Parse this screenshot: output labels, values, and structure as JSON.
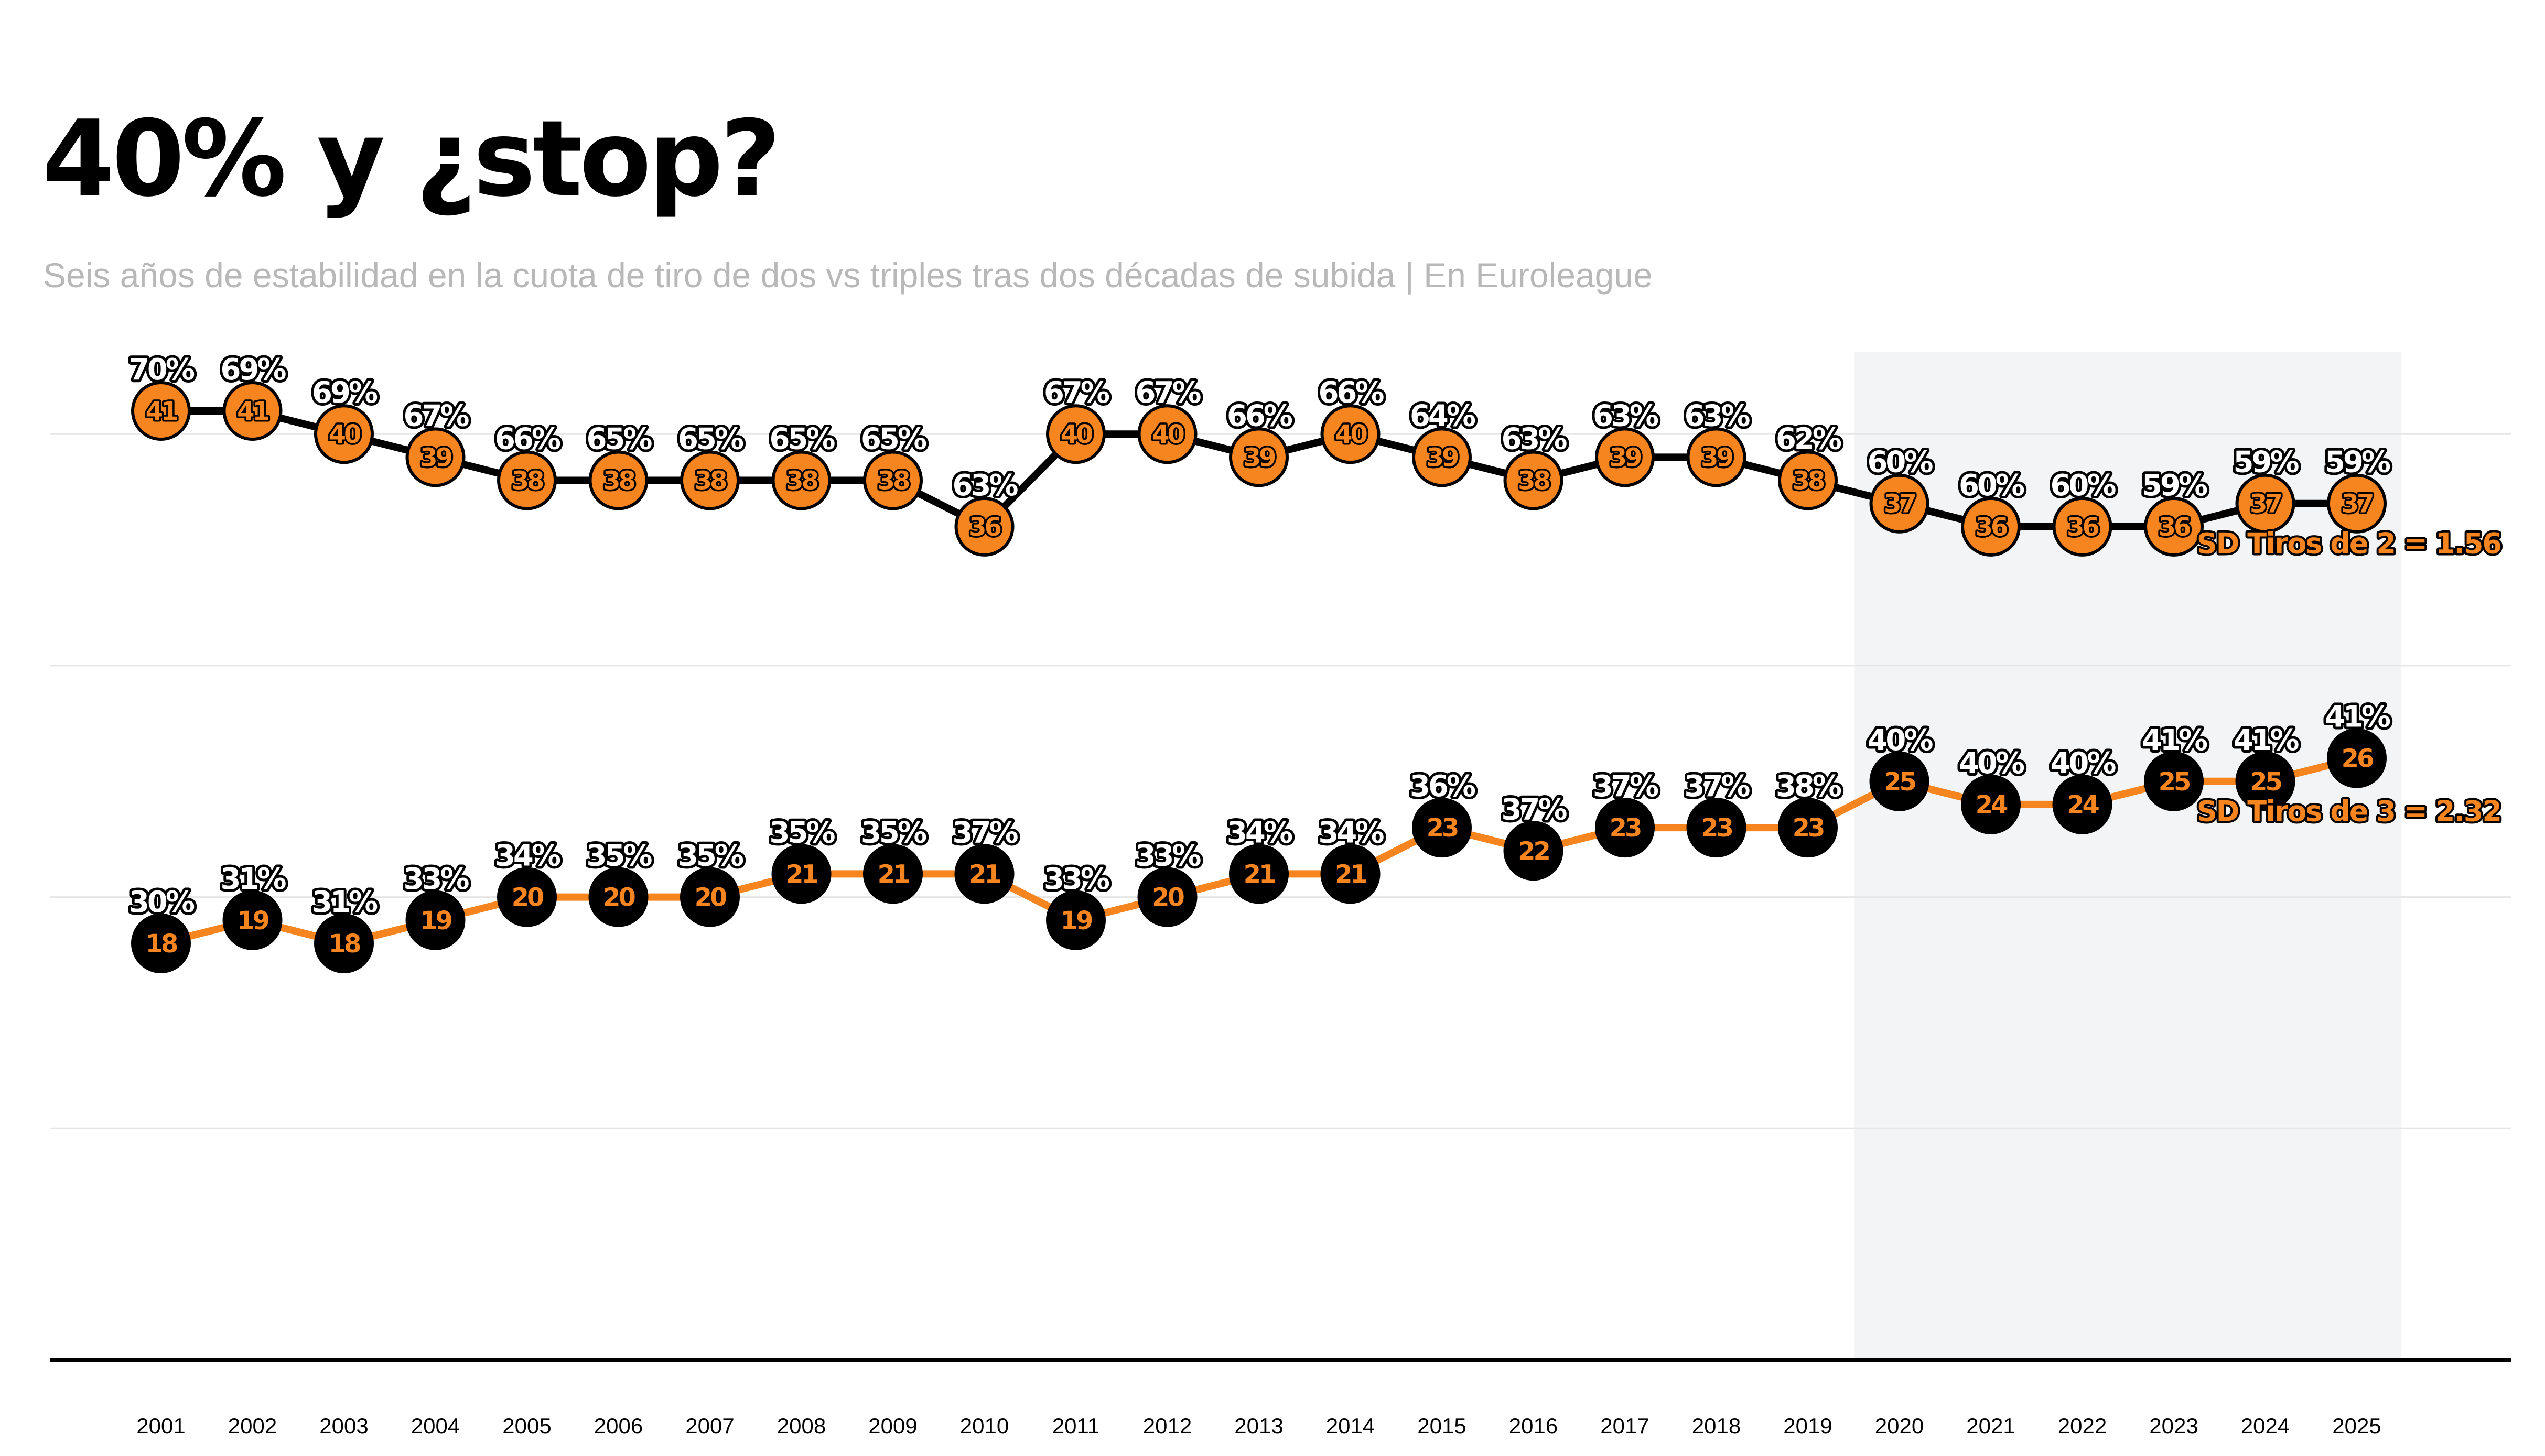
{
  "chart_data": {
    "type": "line",
    "title": "40% y ¿stop?",
    "subtitle": "Seis años de estabilidad en la cuota de tiro de dos vs triples tras dos décadas de subida | En Euroleague",
    "xlabel": "",
    "ylabel": "",
    "categories": [
      "2001",
      "2002",
      "2003",
      "2004",
      "2005",
      "2006",
      "2007",
      "2008",
      "2009",
      "2010",
      "2011",
      "2012",
      "2013",
      "2014",
      "2015",
      "2016",
      "2017",
      "2018",
      "2019",
      "2020",
      "2021",
      "2022",
      "2023",
      "2024",
      "2025"
    ],
    "ylim": [
      0,
      45
    ],
    "grid": true,
    "highlight_range": [
      "2020",
      "2025"
    ],
    "series": [
      {
        "name": "Tiros de 2",
        "line_color": "#000000",
        "marker_fill": "#f6841f",
        "number_fill": "#f6841f",
        "number_stroke": "#000000",
        "values": [
          41,
          41,
          40,
          39,
          38,
          38,
          38,
          38,
          38,
          36,
          40,
          40,
          39,
          40,
          39,
          38,
          39,
          39,
          38,
          37,
          36,
          36,
          36,
          37,
          37
        ],
        "labels": [
          "70%",
          "69%",
          "69%",
          "67%",
          "66%",
          "65%",
          "65%",
          "65%",
          "65%",
          "63%",
          "67%",
          "67%",
          "66%",
          "66%",
          "64%",
          "63%",
          "63%",
          "63%",
          "62%",
          "60%",
          "60%",
          "60%",
          "59%",
          "59%",
          "59%"
        ],
        "sd_label": "SD Tiros de 2 = 1.56"
      },
      {
        "name": "Tiros de 3",
        "line_color": "#f6841f",
        "marker_fill": "#000000",
        "number_fill": "#f6841f",
        "number_stroke": "#000000",
        "values": [
          18,
          19,
          18,
          19,
          20,
          20,
          20,
          21,
          21,
          21,
          19,
          20,
          21,
          21,
          23,
          22,
          23,
          23,
          23,
          25,
          24,
          24,
          25,
          25,
          26
        ],
        "labels": [
          "30%",
          "31%",
          "31%",
          "33%",
          "34%",
          "35%",
          "35%",
          "35%",
          "35%",
          "37%",
          "33%",
          "33%",
          "34%",
          "34%",
          "36%",
          "37%",
          "37%",
          "37%",
          "38%",
          "40%",
          "40%",
          "40%",
          "41%",
          "41%",
          "41%"
        ],
        "sd_label": "SD Tiros de 3 = 2.32"
      }
    ],
    "colors": {
      "orange": "#f6841f",
      "black": "#000000",
      "highlight_band": "#f3f4f6",
      "grid": "#e6e6e6"
    }
  }
}
